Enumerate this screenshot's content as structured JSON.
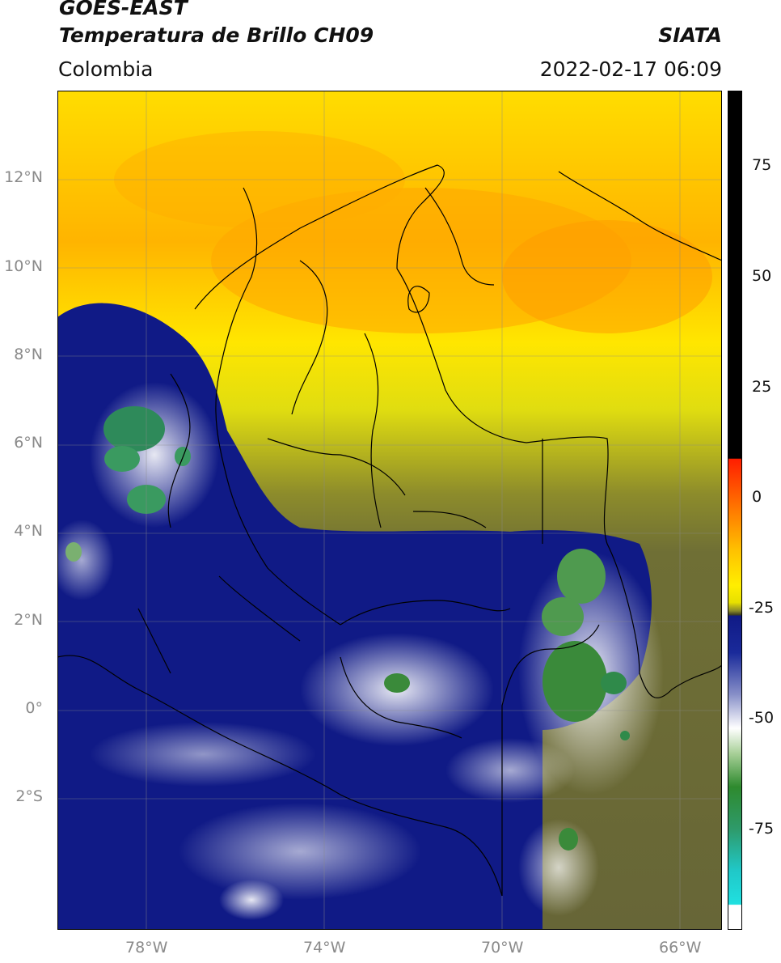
{
  "header": {
    "satellite": "GOES-EAST",
    "product": "Temperatura de Brillo CH09",
    "region": "Colombia",
    "organization": "SIATA",
    "datetime": "2022-02-17 06:09"
  },
  "map": {
    "lat_labels": [
      "12°N",
      "10°N",
      "8°N",
      "6°N",
      "4°N",
      "2°N",
      "0°",
      "2°S"
    ],
    "lon_labels": [
      "78°W",
      "74°W",
      "70°W",
      "66°W"
    ],
    "lat_values": [
      12,
      10,
      8,
      6,
      4,
      2,
      0,
      -2
    ],
    "lon_values": [
      -78,
      -74,
      -70,
      -66
    ],
    "lat_range": [
      -5,
      14
    ],
    "lon_range": [
      -80,
      -65
    ]
  },
  "colorbar": {
    "tick_labels": [
      "75",
      "50",
      "25",
      "0",
      "-25",
      "-50",
      "-75"
    ],
    "tick_values": [
      75,
      50,
      25,
      0,
      -25,
      -50,
      -75
    ],
    "range": [
      -100,
      90
    ],
    "colors": {
      "black": "#000000",
      "red": "#ff1e00",
      "orange": "#ff9a00",
      "yellow": "#ffee00",
      "olive": "#8a8a2a",
      "navy": "#101a86",
      "white": "#ffffff",
      "green": "#2e8a2e",
      "cyan": "#20d8d8"
    }
  }
}
